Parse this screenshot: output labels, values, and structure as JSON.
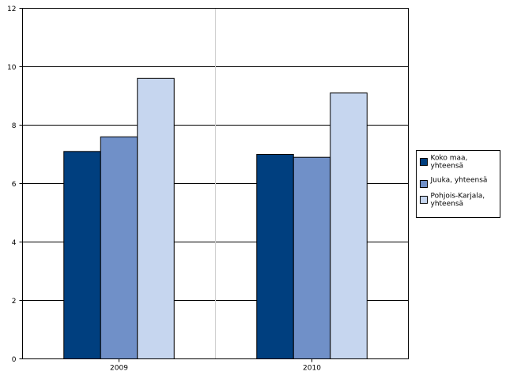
{
  "chart_data": {
    "type": "bar",
    "title": "",
    "xlabel": "",
    "ylabel": "",
    "categories": [
      "2009",
      "2010"
    ],
    "ylim": [
      0,
      12
    ],
    "yticks": [
      "0",
      "2",
      "4",
      "6",
      "8",
      "10",
      "12"
    ],
    "grid": true,
    "legend_position": "right",
    "series": [
      {
        "name": "Koko maa, yhteensä",
        "legend_lines": [
          "Koko maa,",
          "yhteensä"
        ],
        "values": [
          7.1,
          7.0
        ],
        "color": "#003f7f"
      },
      {
        "name": "Juuka, yhteensä",
        "legend_lines": [
          "Juuka, yhteensä"
        ],
        "values": [
          7.6,
          6.9
        ],
        "color": "#7090c8"
      },
      {
        "name": "Pohjois-Karjala, yhteensä",
        "legend_lines": [
          "Pohjois-Karjala,",
          "yhteensä"
        ],
        "values": [
          9.6,
          9.1
        ],
        "color": "#c6d6ef"
      }
    ]
  }
}
